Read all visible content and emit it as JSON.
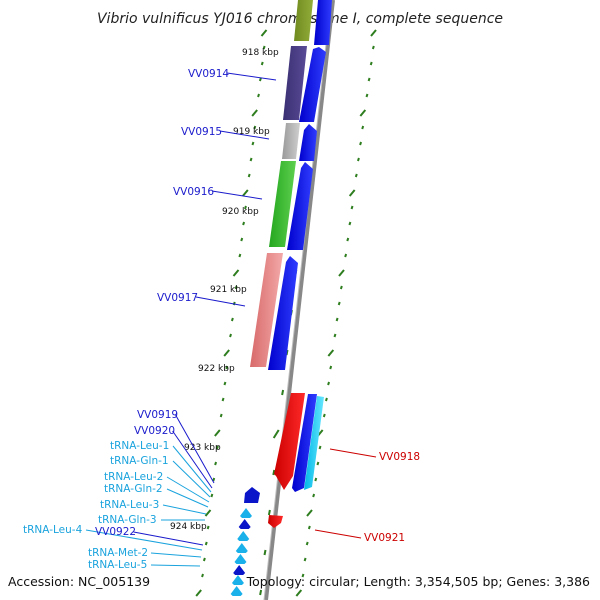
{
  "title": "Vibrio vulnificus YJ016 chromosome I, complete sequence",
  "accession_text": "Accession: NC_005139",
  "topology_text": "Topology: circular; Length: 3,354,505 bp; Genes: 3,386",
  "colors": {
    "backbone": "#888888",
    "forward_cds": "#0000ee",
    "reverse_cds": "#ee0000",
    "trna": "#1ab0ea",
    "tick": "#2e7d1e",
    "gene_label": "#1a1acc",
    "trna_label": "#1aa3dd",
    "reverse_label": "#cc0000"
  },
  "kbp_labels": [
    "918 kbp",
    "919 kbp",
    "920 kbp",
    "921 kbp",
    "922 kbp",
    "923 kbp",
    "924 kbp"
  ],
  "features_forward": [
    "VV0914",
    "VV0915",
    "VV0916",
    "VV0917"
  ],
  "features_reverse": [
    "VV0918",
    "VV0921"
  ],
  "left_labels": [
    {
      "text": "VV0919",
      "kind": "gene"
    },
    {
      "text": "VV0920",
      "kind": "gene"
    },
    {
      "text": "tRNA-Leu-1",
      "kind": "trna"
    },
    {
      "text": "tRNA-Gln-1",
      "kind": "trna"
    },
    {
      "text": "tRNA-Leu-2",
      "kind": "trna"
    },
    {
      "text": "tRNA-Gln-2",
      "kind": "trna"
    },
    {
      "text": "tRNA-Leu-3",
      "kind": "trna"
    },
    {
      "text": "tRNA-Gln-3",
      "kind": "trna"
    },
    {
      "text": "tRNA-Leu-4",
      "kind": "trna"
    },
    {
      "text": "VV0922",
      "kind": "gene"
    },
    {
      "text": "tRNA-Met-2",
      "kind": "trna"
    },
    {
      "text": "tRNA-Leu-5",
      "kind": "trna"
    }
  ]
}
